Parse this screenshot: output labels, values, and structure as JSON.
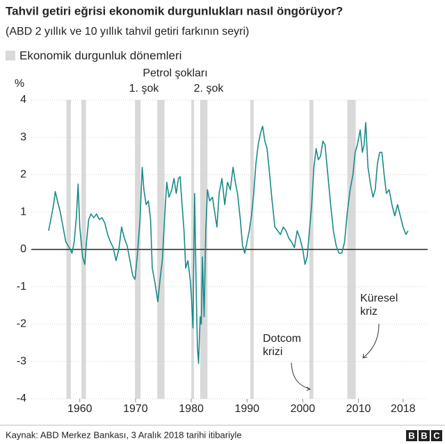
{
  "chart_data": {
    "type": "line",
    "title": "Tahvil getiri eğrisi ekonomik durgunlukları nasıl öngörüyor?",
    "subtitle": "(ABD 2 yıllık ve 10 yıllık tahvil getiri farkının seyri)",
    "recession_legend": "Ekonomik durgunluk dönemleri",
    "recession_color": "#d9d9d9",
    "recessions": [
      [
        1957.6,
        1958.4
      ],
      [
        1960.3,
        1961.1
      ],
      [
        1969.9,
        1970.9
      ],
      [
        1973.9,
        1975.2
      ],
      [
        1980.0,
        1980.5
      ],
      [
        1981.6,
        1982.9
      ],
      [
        1990.6,
        1991.2
      ],
      [
        2001.2,
        2001.9
      ],
      [
        2008.0,
        2009.5
      ]
    ],
    "y_unit": "%",
    "annotations": [
      {
        "text": "Petrol şokları"
      },
      {
        "text": "1. şok"
      },
      {
        "text": "2. şok"
      },
      {
        "lines": [
          "Dotcom",
          "krizi"
        ]
      },
      {
        "lines": [
          "Küresel",
          "kriz"
        ]
      }
    ],
    "source": "Kaynak: ABD Merkez Bankası, 3 Aralık 2018 tarihi itibariyle",
    "logo": [
      "B",
      "B",
      "C"
    ],
    "color": "#1a8a87",
    "x": [
      1954.4,
      1954.8,
      1955.3,
      1955.6,
      1956.0,
      1956.5,
      1957.0,
      1957.5,
      1957.9,
      1958.3,
      1958.6,
      1959.0,
      1959.4,
      1959.7,
      1960.0,
      1960.5,
      1960.9,
      1961.2,
      1961.6,
      1962.0,
      1962.5,
      1963.0,
      1963.5,
      1964.0,
      1964.5,
      1965.0,
      1965.5,
      1966.0,
      1966.5,
      1967.0,
      1967.5,
      1968.0,
      1968.5,
      1969.0,
      1969.5,
      1969.9,
      1970.3,
      1970.8,
      1971.2,
      1971.5,
      1971.9,
      1972.3,
      1972.7,
      1973.0,
      1973.5,
      1974.0,
      1974.4,
      1974.8,
      1975.2,
      1975.6,
      1976.0,
      1976.5,
      1976.9,
      1977.3,
      1977.7,
      1978.0,
      1978.3,
      1978.7,
      1979.0,
      1979.4,
      1979.8,
      1980.0,
      1980.3,
      1980.6,
      1980.9,
      1981.1,
      1981.3,
      1981.6,
      1981.8,
      1982.0,
      1982.3,
      1982.6,
      1982.9,
      1983.3,
      1983.8,
      1984.2,
      1984.6,
      1985.0,
      1985.5,
      1986.0,
      1986.5,
      1987.0,
      1987.5,
      1987.9,
      1988.3,
      1988.8,
      1989.2,
      1989.6,
      1990.0,
      1990.4,
      1990.8,
      1991.2,
      1991.6,
      1992.0,
      1992.4,
      1992.8,
      1993.2,
      1993.6,
      1994.0,
      1994.5,
      1995.0,
      1995.5,
      1996.0,
      1996.5,
      1997.0,
      1997.5,
      1998.0,
      1998.5,
      1999.0,
      1999.5,
      2000.0,
      2000.4,
      2000.8,
      2001.2,
      2001.6,
      2002.0,
      2002.4,
      2002.8,
      2003.2,
      2003.6,
      2004.0,
      2004.5,
      2005.0,
      2005.5,
      2006.0,
      2006.5,
      2007.0,
      2007.5,
      2008.0,
      2008.5,
      2009.0,
      2009.4,
      2009.8,
      2010.3,
      2010.7,
      2011.0,
      2011.3,
      2011.7,
      2012.2,
      2012.6,
      2013.0,
      2013.4,
      2013.8,
      2014.2,
      2014.6,
      2015.0,
      2015.5,
      2016.0,
      2016.5,
      2017.0,
      2017.5,
      2018.0,
      2018.5,
      2018.9
    ],
    "values": [
      0.5,
      0.8,
      1.2,
      1.55,
      1.3,
      1.0,
      0.6,
      0.2,
      0.1,
      0.0,
      -0.1,
      0.2,
      0.9,
      1.75,
      0.6,
      -0.2,
      -0.4,
      0.2,
      0.8,
      0.95,
      0.85,
      0.95,
      0.8,
      0.85,
      0.7,
      0.4,
      0.2,
      0.05,
      -0.3,
      0.0,
      0.6,
      0.3,
      0.1,
      -0.3,
      -0.7,
      -0.8,
      -0.2,
      0.8,
      2.2,
      1.6,
      1.2,
      1.3,
      0.8,
      -0.5,
      -0.9,
      -1.4,
      -0.8,
      -0.3,
      0.8,
      1.8,
      1.4,
      1.6,
      1.9,
      1.5,
      1.9,
      1.95,
      1.3,
      0.5,
      -0.5,
      -0.3,
      -0.8,
      -1.2,
      -2.1,
      1.5,
      -1.2,
      -2.6,
      -3.05,
      -1.8,
      -2.0,
      -0.2,
      -1.8,
      0.5,
      1.6,
      1.3,
      1.4,
      1.0,
      0.6,
      1.5,
      1.9,
      1.2,
      1.8,
      1.6,
      2.2,
      1.8,
      1.5,
      0.8,
      0.1,
      -0.1,
      0.2,
      0.5,
      0.9,
      1.5,
      2.3,
      2.8,
      3.1,
      3.3,
      2.9,
      2.7,
      2.1,
      1.3,
      0.6,
      0.5,
      0.4,
      0.6,
      0.5,
      0.3,
      0.2,
      0.05,
      0.5,
      0.3,
      0.0,
      -0.4,
      -0.2,
      0.5,
      1.2,
      2.2,
      2.7,
      2.4,
      2.5,
      2.9,
      2.8,
      2.0,
      1.2,
      0.5,
      0.1,
      -0.1,
      -0.1,
      0.2,
      1.0,
      1.6,
      2.0,
      2.6,
      2.8,
      3.2,
      2.6,
      2.8,
      3.4,
      2.2,
      1.7,
      1.4,
      1.6,
      2.3,
      2.6,
      2.6,
      2.0,
      1.5,
      1.6,
      1.2,
      0.9,
      1.2,
      0.9,
      0.6,
      0.4,
      0.5
    ],
    "xlim": [
      1951.3,
      2022.4
    ],
    "xticks": [
      1960,
      1970,
      1980,
      1990,
      2000,
      2010,
      2018
    ],
    "ylim": [
      -4,
      4
    ],
    "yticks": [
      -4,
      -3,
      -2,
      -1,
      0,
      1,
      2,
      3,
      4
    ],
    "zero_line": true,
    "grid": true
  }
}
